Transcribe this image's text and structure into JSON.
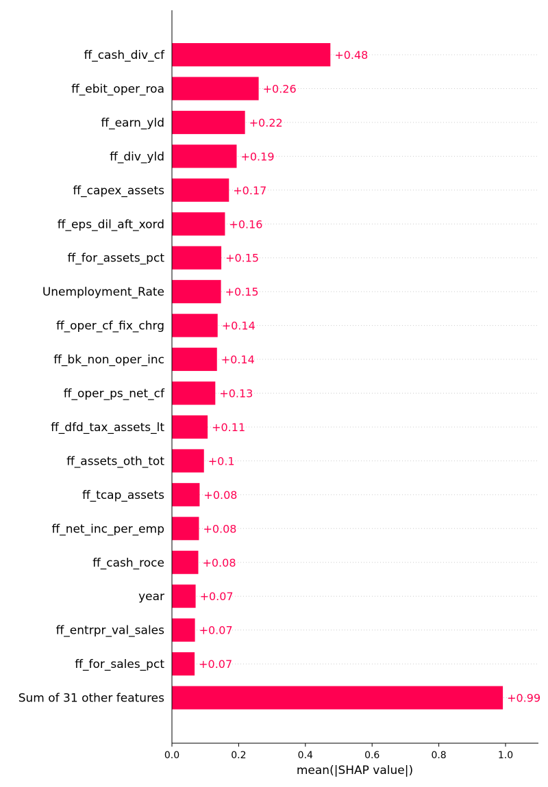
{
  "chart_data": {
    "type": "bar",
    "orientation": "horizontal",
    "title": "",
    "xlabel": "mean(|SHAP value|)",
    "ylabel": "",
    "xlim": [
      0,
      1.09
    ],
    "xticks": [
      "0.0",
      "0.2",
      "0.4",
      "0.6",
      "0.8",
      "1.0"
    ],
    "grid": "dotted horizontal",
    "bar_color": "#ff0051",
    "categories": [
      "ff_cash_div_cf",
      "ff_ebit_oper_roa",
      "ff_earn_yld",
      "ff_div_yld",
      "ff_capex_assets",
      "ff_eps_dil_aft_xord",
      "ff_for_assets_pct",
      "Unemployment_Rate",
      "ff_oper_cf_fix_chrg",
      "ff_bk_non_oper_inc",
      "ff_oper_ps_net_cf",
      "ff_dfd_tax_assets_lt",
      "ff_assets_oth_tot",
      "ff_tcap_assets",
      "ff_net_inc_per_emp",
      "ff_cash_roce",
      "year",
      "ff_entrpr_val_sales",
      "ff_for_sales_pct",
      "Sum of 31 other features"
    ],
    "values": [
      0.475,
      0.26,
      0.219,
      0.194,
      0.171,
      0.159,
      0.148,
      0.147,
      0.137,
      0.135,
      0.13,
      0.107,
      0.096,
      0.083,
      0.081,
      0.079,
      0.071,
      0.069,
      0.068,
      0.992
    ],
    "value_labels": [
      "+0.48",
      "+0.26",
      "+0.22",
      "+0.19",
      "+0.17",
      "+0.16",
      "+0.15",
      "+0.15",
      "+0.14",
      "+0.14",
      "+0.13",
      "+0.11",
      "+0.1",
      "+0.08",
      "+0.08",
      "+0.08",
      "+0.07",
      "+0.07",
      "+0.07",
      "+0.99"
    ]
  }
}
